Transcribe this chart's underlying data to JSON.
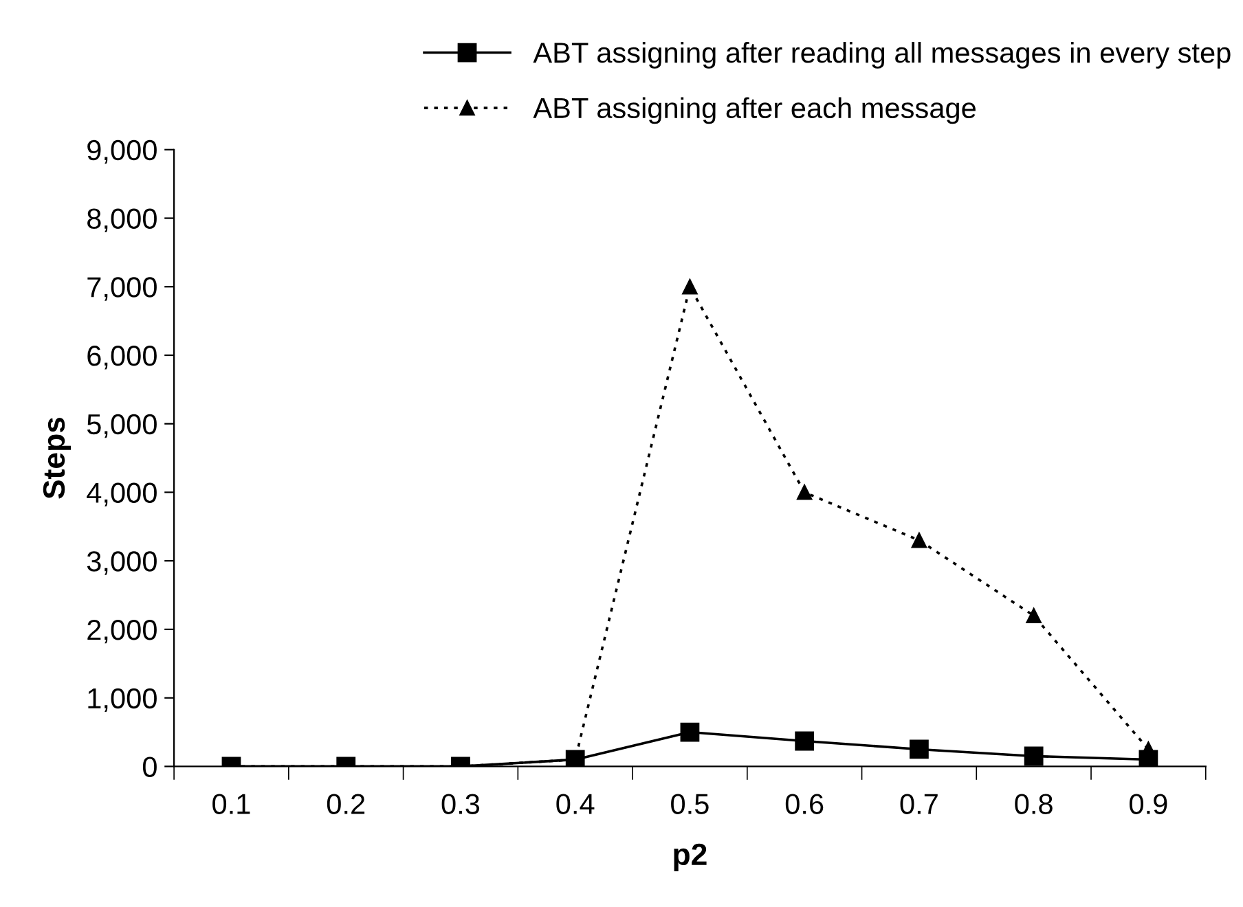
{
  "chart_data": {
    "type": "line",
    "xlabel": "p2",
    "ylabel": "Steps",
    "categories": [
      "0.1",
      "0.2",
      "0.3",
      "0.4",
      "0.5",
      "0.6",
      "0.7",
      "0.8",
      "0.9"
    ],
    "series": [
      {
        "name": "ABT assigning after reading all messages in every step",
        "color": "#000000",
        "marker": "square",
        "line_style": "solid",
        "values": [
          0,
          0,
          0,
          100,
          500,
          370,
          250,
          150,
          100
        ]
      },
      {
        "name": "ABT assigning after each message",
        "color": "#000000",
        "marker": "triangle",
        "line_style": "dotted",
        "values": [
          0,
          0,
          0,
          100,
          7000,
          4000,
          3300,
          2200,
          250
        ]
      }
    ],
    "ylim": [
      0,
      9000
    ],
    "yticks": [
      {
        "value": 0,
        "label": "0"
      },
      {
        "value": 1000,
        "label": "1,000"
      },
      {
        "value": 2000,
        "label": "2,000"
      },
      {
        "value": 3000,
        "label": "3,000"
      },
      {
        "value": 4000,
        "label": "4,000"
      },
      {
        "value": 5000,
        "label": "5,000"
      },
      {
        "value": 6000,
        "label": "6,000"
      },
      {
        "value": 7000,
        "label": "7,000"
      },
      {
        "value": 8000,
        "label": "8,000"
      },
      {
        "value": 9000,
        "label": "9,000"
      }
    ],
    "grid": false,
    "legend": "top right"
  }
}
